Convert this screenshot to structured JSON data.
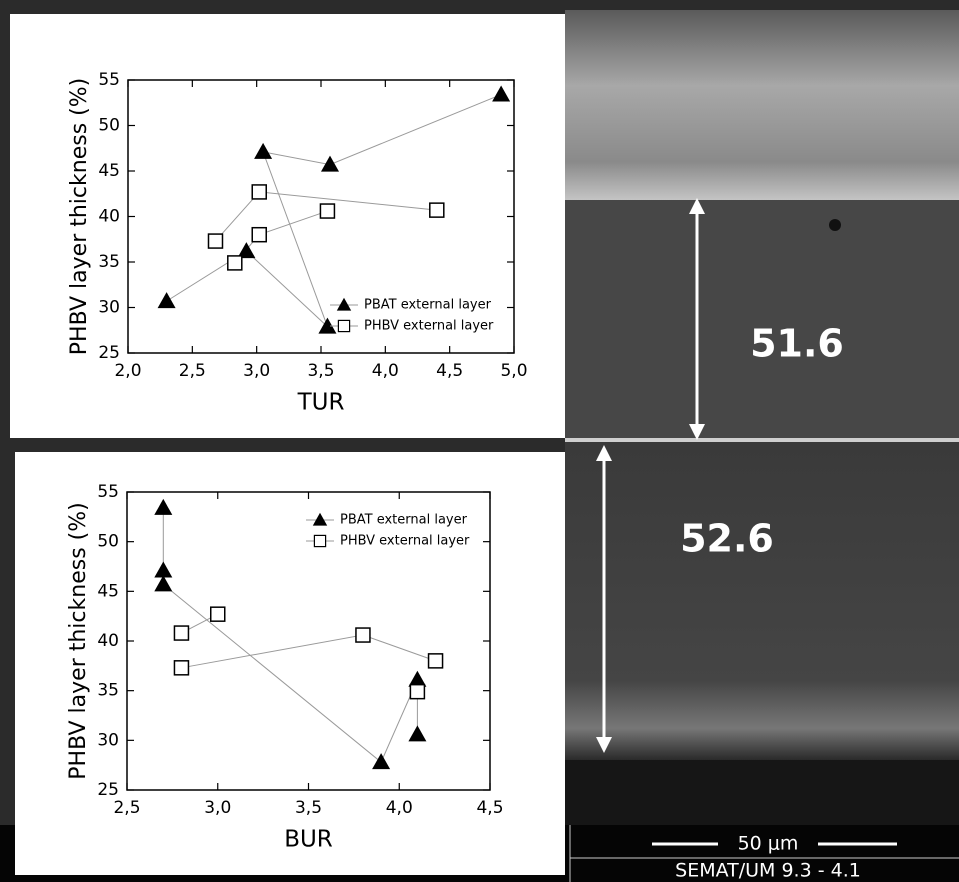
{
  "chart_data": [
    {
      "type": "scatter",
      "x_label": "TUR",
      "y_label": "PHBV layer thickness (%)",
      "xlim": [
        2.0,
        5.0
      ],
      "ylim": [
        25,
        55
      ],
      "xticks": [
        {
          "value": 2.0,
          "label": "2,0"
        },
        {
          "value": 2.5,
          "label": "2,5"
        },
        {
          "value": 3.0,
          "label": "3,0"
        },
        {
          "value": 3.5,
          "label": "3,5"
        },
        {
          "value": 4.0,
          "label": "4,0"
        },
        {
          "value": 4.5,
          "label": "4,5"
        },
        {
          "value": 5.0,
          "label": "5,0"
        }
      ],
      "yticks": [
        25,
        30,
        35,
        40,
        45,
        50,
        55
      ],
      "legend": "lower right",
      "line_color": "#9a9a9a",
      "series": [
        {
          "name": "PBAT external layer",
          "color": "#000000",
          "marker": "triangle",
          "x": [
            2.3,
            2.92,
            3.55,
            3.05,
            3.57,
            4.9
          ],
          "values": [
            30.7,
            36.2,
            27.9,
            47.1,
            45.7,
            53.4
          ]
        },
        {
          "name": "PHBV external layer",
          "color": "#000000",
          "marker": "square",
          "x": [
            3.55,
            3.02,
            2.83,
            null,
            2.68,
            3.02,
            4.4
          ],
          "values": [
            40.6,
            38.0,
            34.9,
            null,
            37.3,
            42.7,
            40.7
          ]
        }
      ]
    },
    {
      "type": "scatter",
      "x_label": "BUR",
      "y_label": "PHBV layer thickness (%)",
      "xlim": [
        2.5,
        4.5
      ],
      "ylim": [
        25,
        55
      ],
      "xticks": [
        {
          "value": 2.5,
          "label": "2,5"
        },
        {
          "value": 3.0,
          "label": "3,0"
        },
        {
          "value": 3.5,
          "label": "3,5"
        },
        {
          "value": 4.0,
          "label": "4,0"
        },
        {
          "value": 4.5,
          "label": "4,5"
        }
      ],
      "yticks": [
        25,
        30,
        35,
        40,
        45,
        50,
        55
      ],
      "legend": "upper right",
      "line_color": "#9a9a9a",
      "series": [
        {
          "name": "PBAT external layer",
          "color": "#000000",
          "marker": "triangle",
          "x": [
            2.7,
            2.7,
            2.7,
            3.9,
            4.1,
            4.1
          ],
          "values": [
            53.4,
            47.1,
            45.7,
            27.8,
            36.1,
            30.6
          ]
        },
        {
          "name": "PHBV external layer",
          "color": "#000000",
          "marker": "square",
          "x": [
            2.8,
            3.0,
            null,
            2.8,
            3.8,
            4.2,
            null,
            4.1
          ],
          "values": [
            40.8,
            42.7,
            null,
            37.3,
            40.6,
            38.0,
            null,
            34.9
          ]
        }
      ]
    }
  ],
  "sem_image": {
    "thickness_labels": [
      "51.6",
      "52.6"
    ],
    "scale_bar": "50 μm",
    "footer": "SEMAT/UM 9.3 - 4.1"
  }
}
